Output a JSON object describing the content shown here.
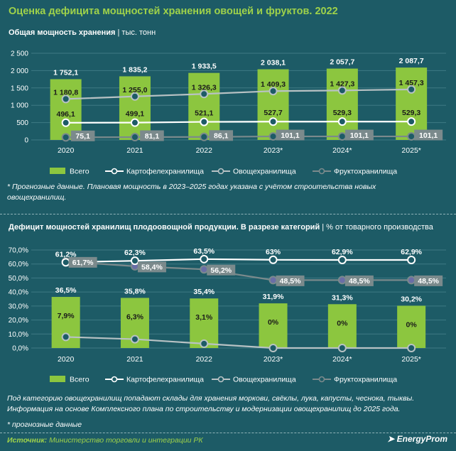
{
  "page": {
    "title": "Оценка дефицита мощностей хранения овощей и фруктов. 2022",
    "source_label": "Источник:",
    "source_text": "Министерство торговли и интеграции РК",
    "logo": "EnergyProm"
  },
  "panel1": {
    "title_bold": "Общая мощность хранения",
    "title_unit": "| тыс. тонн",
    "note": "* Прогнозные данные. Плановая мощность в 2023–2025 годах указана с учётом строительства новых овощехранилищ."
  },
  "panel2": {
    "title_bold": "Дефицит мощностей хранилищ плодоовощной продукции. В разрезе категорий",
    "title_unit": "| % от товарного производства",
    "note1": "Под категорию овощехранилищ попадают склады для хранения моркови, свёклы, лука, капусты, чеснока, тыквы. Информация на основе Комплексного плана по строительству и модернизации овощехранилищ до 2025 года.",
    "note2": "* прогнозные данные"
  },
  "colors": {
    "bar": "#8cc63f",
    "potato": "#ffffff",
    "veg": "#b8c2c4",
    "fruit": "#7b8a8c",
    "accent": "#9fd24a",
    "bg": "#1d5b66"
  },
  "chart_data": [
    {
      "type": "bar",
      "categories": [
        "2020",
        "2021",
        "2022",
        "2023*",
        "2024*",
        "2025*"
      ],
      "ylim": [
        0,
        2500
      ],
      "yticks": [
        0,
        500,
        1000,
        1500,
        2000,
        2500
      ],
      "series": [
        {
          "name": "Всего",
          "kind": "bar",
          "values": [
            1752.1,
            1835.2,
            1933.5,
            2038.1,
            2057.7,
            2087.7
          ],
          "labels": [
            "1 752,1",
            "1 835,2",
            "1 933,5",
            "2 038,1",
            "2 057,7",
            "2 087,7"
          ]
        },
        {
          "name": "Картофелехранилища",
          "kind": "line",
          "values": [
            496.1,
            499.1,
            521.1,
            527.7,
            529.3,
            529.3
          ],
          "labels": [
            "496,1",
            "499,1",
            "521,1",
            "527,7",
            "529,3",
            "529,3"
          ]
        },
        {
          "name": "Овощехранилища",
          "kind": "line",
          "values": [
            1180.8,
            1255.0,
            1326.3,
            1409.3,
            1427.3,
            1457.3
          ],
          "labels": [
            "1 180,8",
            "1 255,0",
            "1 326,3",
            "1 409,3",
            "1 427,3",
            "1 457,3"
          ]
        },
        {
          "name": "Фруктохранилища",
          "kind": "line",
          "values": [
            75.1,
            81.1,
            86.1,
            101.1,
            101.1,
            101.1
          ],
          "labels": [
            "75,1",
            "81,1",
            "86,1",
            "101,1",
            "101,1",
            "101,1"
          ]
        }
      ],
      "legend_position": "bottom"
    },
    {
      "type": "bar",
      "categories": [
        "2020",
        "2021",
        "2022",
        "2023*",
        "2024*",
        "2025*"
      ],
      "ylim": [
        0,
        70
      ],
      "yticks": [
        0,
        10,
        20,
        30,
        40,
        50,
        60,
        70
      ],
      "ytick_labels": [
        "0,0%",
        "10,0%",
        "20,0%",
        "30,0%",
        "40,0%",
        "50,0%",
        "60,0%",
        "70,0%"
      ],
      "series": [
        {
          "name": "Всего",
          "kind": "bar",
          "values": [
            36.5,
            35.8,
            35.4,
            31.9,
            31.3,
            30.2
          ],
          "labels": [
            "36,5%",
            "35,8%",
            "35,4%",
            "31,9%",
            "31,3%",
            "30,2%"
          ]
        },
        {
          "name": "Картофелехранилища",
          "kind": "line",
          "values": [
            61.2,
            62.3,
            63.5,
            63,
            62.9,
            62.9
          ],
          "labels": [
            "61,2%",
            "62,3%",
            "63,5%",
            "63%",
            "62,9%",
            "62,9%"
          ]
        },
        {
          "name": "Овощехранилища",
          "kind": "line",
          "values": [
            7.9,
            6.3,
            3.1,
            0,
            0,
            0
          ],
          "labels": [
            "7,9%",
            "6,3%",
            "3,1%",
            "0%",
            "0%",
            "0%"
          ]
        },
        {
          "name": "Фруктохранилища",
          "kind": "line",
          "values": [
            61.7,
            58.4,
            56.2,
            48.5,
            48.5,
            48.5
          ],
          "labels": [
            "61,7%",
            "58,4%",
            "56,2%",
            "48,5%",
            "48,5%",
            "48,5%"
          ]
        }
      ],
      "legend_position": "bottom"
    }
  ]
}
